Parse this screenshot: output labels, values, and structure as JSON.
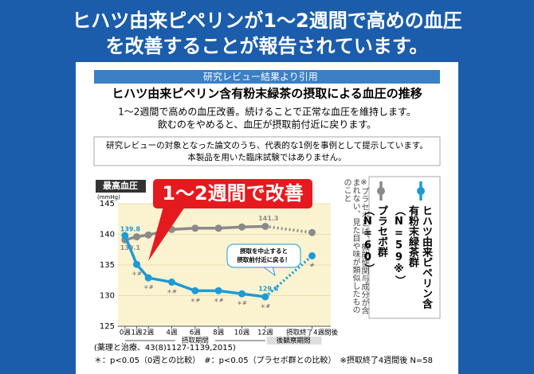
{
  "header": {
    "title_lines": [
      "ヒハツ由来ピペリンが1～2週間で高めの血圧",
      "を改善することが報告されています。"
    ]
  },
  "panel": {
    "source_label": "研究レビュー結果より引用",
    "subtitle": "ヒハツ由来ピペリン含有粉末緑茶の摂取による血圧の推移",
    "description": [
      "1～2週間で高めの血圧改善。続けることで正常な血圧を維持します。",
      "飲むのをやめると、血圧が摂取前付近に戻ります。"
    ],
    "notice": [
      "研究レビューの対象となった論文のうち、代表的な1例を事例として提示しています。",
      "本製品を用いた臨床試験ではありません。"
    ]
  },
  "chart_data": {
    "type": "line",
    "y_label": "最高血圧",
    "y_unit": "(mmHg)",
    "x": [
      0,
      1,
      2,
      4,
      6,
      8,
      10,
      12,
      16
    ],
    "xlim": [
      -0.6,
      17.6
    ],
    "xticks": [
      {
        "value": 0,
        "label": "0週"
      },
      {
        "value": 1,
        "label": "1週"
      },
      {
        "value": 2,
        "label": "2週"
      },
      {
        "value": 4,
        "label": "4週"
      },
      {
        "value": 6,
        "label": "6週"
      },
      {
        "value": 8,
        "label": "8週"
      },
      {
        "value": 10,
        "label": "10週"
      },
      {
        "value": 12,
        "label": "12週"
      },
      {
        "value": 16,
        "label": "摂取終了4週間後"
      }
    ],
    "ylim": [
      125,
      145
    ],
    "yticks": [
      125,
      130,
      135,
      140,
      145
    ],
    "dashed_from": 7,
    "series": [
      {
        "name": "ヒハツ由来ピペリン含有粉末緑茶群（N=59※）",
        "color": "#1e9ad6",
        "values": [
          139.8,
          135.1,
          132.9,
          132.2,
          130.8,
          130.8,
          130.3,
          129.8,
          136.5
        ],
        "value_labels": [
          "139.8",
          null,
          null,
          null,
          null,
          null,
          null,
          "129.8",
          null
        ],
        "significance": [
          null,
          "＊#",
          "＊#",
          "＊#",
          "＊#",
          "＊#",
          "＊#",
          "＊#",
          "#"
        ]
      },
      {
        "name": "プラセボ群（N=60）",
        "color": "#8a8a8a",
        "values": [
          139.1,
          139.6,
          139.9,
          140.8,
          141,
          141,
          141.2,
          141.3,
          140.3
        ],
        "value_labels": [
          "139.1",
          null,
          null,
          null,
          null,
          null,
          null,
          "141.3",
          null
        ]
      }
    ],
    "callout": "1～2週間で改善",
    "bubble": [
      "摂取を中止すると",
      "摂取前付近に戻る！"
    ],
    "periods": [
      "摂取期間",
      "後観察期間"
    ],
    "note": "※プラセボとは、機能性関与成分が含まれない、見た目や味が類似したもののこと"
  },
  "footer": [
    "(薬理と治療、43(8)1127-1139,2015)",
    "＊：p<0.05（0週との比較）　#：p<0.05（プラセボ群との比較）　※摂取終了4週間後 N=58"
  ]
}
